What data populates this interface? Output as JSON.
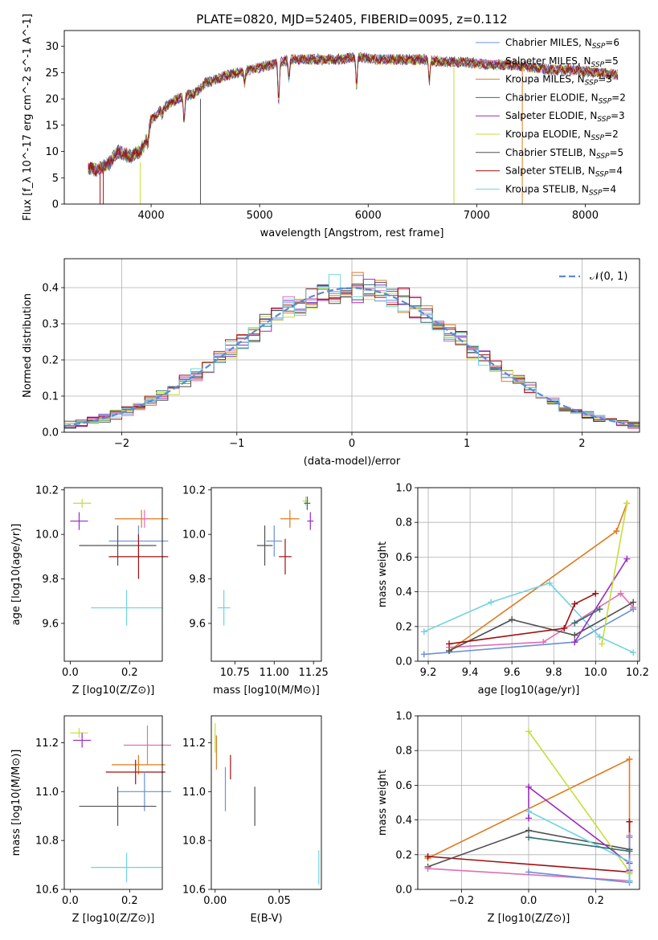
{
  "figure_title": "PLATE=0820, MJD=52405, FIBERID=0095, z=0.112",
  "colors": {
    "Chabrier MILES": "#6a8fd8",
    "Salpeter MILES": "#e06fb4",
    "Kroupa MILES": "#e07a1f",
    "Chabrier ELODIE": "#2f6f6f",
    "Salpeter ELODIE": "#9a2cc0",
    "Kroupa ELODIE": "#c6de3a",
    "Chabrier STELIB": "#505050",
    "Salpeter STELIB": "#a01010",
    "Kroupa STELIB": "#6fd3e0",
    "normal": "#5b8bd6"
  },
  "chart_data": [
    {
      "type": "line",
      "title": "PLATE=0820, MJD=52405, FIBERID=0095, z=0.112",
      "xlabel": "wavelength [Angstrom, rest frame]",
      "ylabel": "Flux [f_λ 10^-17 erg cm^-2 s^-1 A^-1]",
      "xlim": [
        3200,
        8500
      ],
      "ylim": [
        0,
        33
      ],
      "xticks": [
        "4000",
        "5000",
        "6000",
        "7000",
        "8000"
      ],
      "yticks": [
        "0",
        "5",
        "10",
        "15",
        "20",
        "25",
        "30"
      ],
      "legend_placement": "right",
      "series": [
        {
          "name": "Chabrier MILES, N_SSP=6",
          "label_main": "Chabrier MILES, N",
          "label_sub": "SSP",
          "label_tail": "=6"
        },
        {
          "name": "Salpeter MILES, N_SSP=5",
          "label_main": "Salpeter MILES, N",
          "label_sub": "SSP",
          "label_tail": "=5"
        },
        {
          "name": "Kroupa MILES, N_SSP=3",
          "label_main": "Kroupa MILES, N",
          "label_sub": "SSP",
          "label_tail": "=3"
        },
        {
          "name": "Chabrier ELODIE, N_SSP=2",
          "label_main": "Chabrier ELODIE, N",
          "label_sub": "SSP",
          "label_tail": "=2"
        },
        {
          "name": "Salpeter ELODIE, N_SSP=3",
          "label_main": "Salpeter ELODIE, N",
          "label_sub": "SSP",
          "label_tail": "=3"
        },
        {
          "name": "Kroupa ELODIE, N_SSP=2",
          "label_main": "Kroupa ELODIE, N",
          "label_sub": "SSP",
          "label_tail": "=2"
        },
        {
          "name": "Chabrier STELIB, N_SSP=5",
          "label_main": "Chabrier STELIB, N",
          "label_sub": "SSP",
          "label_tail": "=5"
        },
        {
          "name": "Salpeter STELIB, N_SSP=4",
          "label_main": "Salpeter STELIB, N",
          "label_sub": "SSP",
          "label_tail": "=4"
        },
        {
          "name": "Kroupa STELIB, N_SSP=4",
          "label_main": "Kroupa STELIB, N",
          "label_sub": "SSP",
          "label_tail": "=4"
        }
      ],
      "continuum": {
        "x": [
          3400,
          3500,
          3600,
          3700,
          3800,
          3900,
          3950,
          4000,
          4100,
          4200,
          4300,
          4400,
          4500,
          4700,
          4900,
          5100,
          5300,
          5500,
          5700,
          5900,
          6100,
          6300,
          6500,
          6700,
          6900,
          7100,
          7300,
          7500,
          7700,
          7900,
          8100,
          8300
        ],
        "y": [
          7,
          6.5,
          7.5,
          10,
          9,
          10,
          12,
          16,
          18,
          19.5,
          20.5,
          21,
          23,
          24.5,
          25.5,
          26.5,
          27.5,
          27.5,
          27.5,
          28,
          27.5,
          27.5,
          27.5,
          27,
          27,
          26.5,
          26.5,
          26,
          25.5,
          25.5,
          25,
          24.5
        ]
      },
      "absorption_lines": [
        {
          "x": 3934,
          "y": 11
        },
        {
          "x": 3969,
          "y": 11.5
        },
        {
          "x": 4102,
          "y": 17
        },
        {
          "x": 4304,
          "y": 16
        },
        {
          "x": 4861,
          "y": 23
        },
        {
          "x": 5175,
          "y": 19.5
        },
        {
          "x": 5270,
          "y": 24
        },
        {
          "x": 5893,
          "y": 22.5
        },
        {
          "x": 6563,
          "y": 23.5
        }
      ],
      "dropouts": [
        {
          "x": 3530,
          "y_from": 6,
          "y_to": 0
        },
        {
          "x": 3560,
          "y_from": 6,
          "y_to": 0
        },
        {
          "x": 3900,
          "y_from": 8,
          "y_to": 0
        },
        {
          "x": 4455,
          "y_from": 20,
          "y_to": 0
        },
        {
          "x": 6790,
          "y_from": 26,
          "y_to": 0
        },
        {
          "x": 7420,
          "y_from": 26,
          "y_to": 0
        }
      ]
    },
    {
      "type": "bar",
      "xlabel": "(data-model)/error",
      "ylabel": "Normed distribution",
      "xlim": [
        -2.5,
        2.5
      ],
      "ylim": [
        0,
        0.48
      ],
      "xticks": [
        "−2",
        "−1",
        "0",
        "1",
        "2"
      ],
      "yticks": [
        "0.0",
        "0.1",
        "0.2",
        "0.3",
        "0.4"
      ],
      "grid": true,
      "legend_placement": "top-right",
      "legend_label": "𝒩(0, 1)",
      "bin_width": 0.1
    },
    {
      "type": "scatter",
      "xlabel": "Z [log10(Z/Z⊙)]",
      "ylabel": "age  [log10(age/yr)]",
      "xlim": [
        -0.02,
        0.31
      ],
      "ylim": [
        9.43,
        10.21
      ],
      "xticks": [
        "0.0",
        "0.2"
      ],
      "yticks": [
        "9.6",
        "9.8",
        "10.0",
        "10.2"
      ],
      "points": [
        {
          "x": 0.04,
          "y": 10.14,
          "xerr": 0.03,
          "yerr": 0.02
        },
        {
          "x": 0.03,
          "y": 10.06,
          "xerr": 0.03,
          "yerr": 0.04
        },
        {
          "x": 0.24,
          "y": 10.07,
          "xerr": 0.09,
          "yerr": 0.04
        },
        {
          "x": 0.25,
          "y": 10.07,
          "xerr": 0.01,
          "yerr": 0.04
        },
        {
          "x": 0.23,
          "y": 9.97,
          "xerr": 0.1,
          "yerr": 0.07
        },
        {
          "x": 0.16,
          "y": 9.95,
          "xerr": 0.13,
          "yerr": 0.09
        },
        {
          "x": 0.23,
          "y": 9.9,
          "xerr": 0.1,
          "yerr": 0.1
        },
        {
          "x": 0.19,
          "y": 9.67,
          "xerr": 0.12,
          "yerr": 0.08
        }
      ]
    },
    {
      "type": "scatter",
      "xlabel": "mass [log10(M/M⊙)]",
      "ylabel": "",
      "xlim": [
        10.6,
        11.3
      ],
      "ylim": [
        9.43,
        10.21
      ],
      "xticks": [
        "10.75",
        "11.00",
        "11.25"
      ],
      "yticks": [
        "9.6",
        "9.8",
        "10.0",
        "10.2"
      ],
      "points": [
        {
          "x": 11.2,
          "y": 10.15,
          "xerr": 0.02,
          "yerr": 0.02
        },
        {
          "x": 11.21,
          "y": 10.14,
          "xerr": 0.02,
          "yerr": 0.03
        },
        {
          "x": 11.23,
          "y": 10.06,
          "xerr": 0.02,
          "yerr": 0.04
        },
        {
          "x": 11.1,
          "y": 10.07,
          "xerr": 0.06,
          "yerr": 0.04
        },
        {
          "x": 11.0,
          "y": 9.97,
          "xerr": 0.05,
          "yerr": 0.07
        },
        {
          "x": 10.94,
          "y": 9.95,
          "xerr": 0.05,
          "yerr": 0.09
        },
        {
          "x": 11.07,
          "y": 9.9,
          "xerr": 0.04,
          "yerr": 0.08
        },
        {
          "x": 10.68,
          "y": 9.67,
          "xerr": 0.04,
          "yerr": 0.08
        }
      ]
    },
    {
      "type": "line",
      "xlabel": "age  [log10(age/yr)]",
      "ylabel": "mass weight",
      "xlim": [
        9.15,
        10.21
      ],
      "ylim": [
        0.0,
        1.0
      ],
      "xticks": [
        "9.2",
        "9.4",
        "9.6",
        "9.8",
        "10.0",
        "10.2"
      ],
      "yticks": [
        "0.0",
        "0.2",
        "0.4",
        "0.6",
        "0.8",
        "1.0"
      ],
      "grid": true,
      "series": [
        {
          "name": "Chabrier MILES",
          "x": [
            9.18,
            9.9,
            10.18
          ],
          "y": [
            0.04,
            0.11,
            0.3
          ]
        },
        {
          "name": "Salpeter MILES",
          "x": [
            9.3,
            9.75,
            10.12,
            10.18
          ],
          "y": [
            0.08,
            0.11,
            0.39,
            0.31
          ]
        },
        {
          "name": "Kroupa MILES",
          "x": [
            9.3,
            10.1,
            10.15
          ],
          "y": [
            0.06,
            0.75,
            0.91
          ]
        },
        {
          "name": "Kroupa STELIB",
          "x": [
            9.18,
            9.5,
            9.78,
            10.02,
            10.18
          ],
          "y": [
            0.17,
            0.34,
            0.45,
            0.14,
            0.05
          ]
        },
        {
          "name": "Chabrier STELIB",
          "x": [
            9.3,
            9.6,
            9.9,
            10.18
          ],
          "y": [
            0.06,
            0.24,
            0.15,
            0.34
          ]
        },
        {
          "name": "Salpeter STELIB",
          "x": [
            9.3,
            9.85,
            9.9,
            10.0
          ],
          "y": [
            0.1,
            0.19,
            0.33,
            0.39
          ]
        },
        {
          "name": "Salpeter ELODIE",
          "x": [
            9.9,
            10.15
          ],
          "y": [
            0.11,
            0.59
          ]
        },
        {
          "name": "Kroupa ELODIE",
          "x": [
            10.03,
            10.15
          ],
          "y": [
            0.1,
            0.91
          ]
        },
        {
          "name": "Chabrier ELODIE",
          "x": [
            9.9,
            10.02
          ],
          "y": [
            0.22,
            0.3
          ]
        }
      ]
    },
    {
      "type": "scatter",
      "xlabel": "Z [log10(Z/Z⊙)]",
      "ylabel": "mass [log10(M/M⊙)]",
      "xlim": [
        -0.02,
        0.31
      ],
      "ylim": [
        10.6,
        11.31
      ],
      "xticks": [
        "0.0",
        "0.2"
      ],
      "yticks": [
        "10.6",
        "10.8",
        "11.0",
        "11.2"
      ],
      "points": [
        {
          "x": 0.03,
          "y": 11.24,
          "xerr": 0.03,
          "yerr": 0.02
        },
        {
          "x": 0.04,
          "y": 11.21,
          "xerr": 0.03,
          "yerr": 0.03
        },
        {
          "x": 0.26,
          "y": 11.19,
          "xerr": 0.08,
          "yerr": 0.08
        },
        {
          "x": 0.23,
          "y": 11.11,
          "xerr": 0.09,
          "yerr": 0.04
        },
        {
          "x": 0.22,
          "y": 11.08,
          "xerr": 0.1,
          "yerr": 0.05
        },
        {
          "x": 0.25,
          "y": 11.0,
          "xerr": 0.09,
          "yerr": 0.08
        },
        {
          "x": 0.16,
          "y": 10.94,
          "xerr": 0.13,
          "yerr": 0.08
        },
        {
          "x": 0.19,
          "y": 10.69,
          "xerr": 0.12,
          "yerr": 0.06
        }
      ]
    },
    {
      "type": "scatter",
      "xlabel": "E(B-V)",
      "ylabel": "",
      "xlim": [
        -0.003,
        0.083
      ],
      "ylim": [
        10.6,
        11.31
      ],
      "xticks": [
        "0.00",
        "0.05"
      ],
      "yticks": [
        "10.6",
        "10.8",
        "11.0",
        "11.2"
      ],
      "points": [
        {
          "x": 0.0,
          "y": 11.22,
          "xerr": 0.0,
          "yerr": 0.06
        },
        {
          "x": 0.001,
          "y": 11.16,
          "xerr": 0.0,
          "yerr": 0.07
        },
        {
          "x": 0.012,
          "y": 11.1,
          "xerr": 0.0,
          "yerr": 0.05
        },
        {
          "x": 0.008,
          "y": 11.01,
          "xerr": 0.0,
          "yerr": 0.09
        },
        {
          "x": 0.031,
          "y": 10.94,
          "xerr": 0.0,
          "yerr": 0.08
        },
        {
          "x": 0.081,
          "y": 10.69,
          "xerr": 0.0,
          "yerr": 0.07
        }
      ]
    },
    {
      "type": "line",
      "xlabel": "Z [log10(Z/Z⊙)]",
      "ylabel": "mass weight",
      "xlim": [
        -0.33,
        0.33
      ],
      "ylim": [
        0.0,
        1.0
      ],
      "xticks": [
        "−0.2",
        "0.0",
        "0.2"
      ],
      "yticks": [
        "0.0",
        "0.2",
        "0.4",
        "0.6",
        "0.8",
        "1.0"
      ],
      "grid": true,
      "series": [
        {
          "name": "Kroupa MILES",
          "x": [
            -0.3,
            0.3,
            0.3
          ],
          "y": [
            0.18,
            0.75,
            0.05
          ]
        },
        {
          "name": "Salpeter STELIB",
          "x": [
            -0.3,
            0.3,
            0.3
          ],
          "y": [
            0.19,
            0.1,
            0.39
          ]
        },
        {
          "name": "Chabrier STELIB",
          "x": [
            -0.3,
            0.0,
            0.3,
            0.3
          ],
          "y": [
            0.13,
            0.34,
            0.23,
            0.1
          ]
        },
        {
          "name": "Salpeter MILES",
          "x": [
            -0.3,
            0.3,
            0.3
          ],
          "y": [
            0.12,
            0.05,
            0.31
          ]
        },
        {
          "name": "Chabrier MILES",
          "x": [
            0.0,
            0.3,
            0.3
          ],
          "y": [
            0.1,
            0.04,
            0.3
          ]
        },
        {
          "name": "Kroupa ELODIE",
          "x": [
            0.0,
            0.3,
            0.3
          ],
          "y": [
            0.91,
            0.1,
            0.09
          ]
        },
        {
          "name": "Salpeter ELODIE",
          "x": [
            0.0,
            0.0,
            0.3,
            0.3
          ],
          "y": [
            0.41,
            0.59,
            0.15,
            0.11
          ]
        },
        {
          "name": "Kroupa STELIB",
          "x": [
            0.0,
            0.3,
            0.3
          ],
          "y": [
            0.45,
            0.16,
            0.05
          ]
        },
        {
          "name": "Chabrier ELODIE",
          "x": [
            0.0,
            0.3
          ],
          "y": [
            0.3,
            0.22
          ]
        }
      ]
    }
  ]
}
